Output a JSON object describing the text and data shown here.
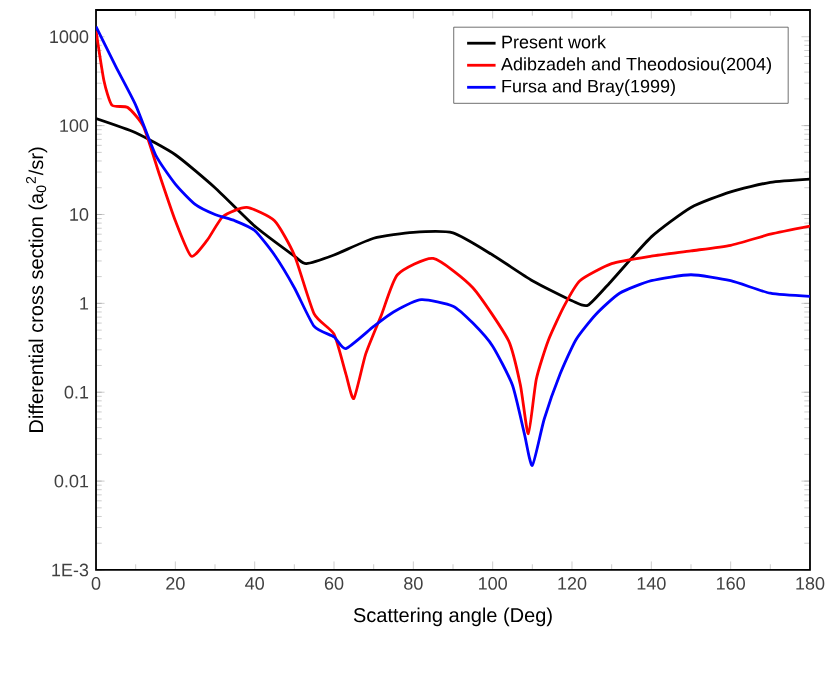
{
  "chart_data": {
    "type": "line",
    "xlabel": "Scattering angle (Deg)",
    "ylabel": "Differential cross section (a$_{0}$$^{2}$/sr)",
    "log": "y",
    "xlim": [
      0,
      180
    ],
    "ylim": [
      0.001,
      2000
    ],
    "xticks": [
      0,
      20,
      40,
      60,
      80,
      100,
      120,
      140,
      160,
      180
    ],
    "yticks": [
      {
        "value": 0.001,
        "label": "1E-3"
      },
      0.01,
      0.1,
      1,
      10,
      100,
      1000
    ],
    "legend": "top right",
    "grid": false,
    "marker": "none",
    "line_style": "solid",
    "series": [
      {
        "name": "Present work",
        "color": "#000000",
        "x": [
          0,
          10,
          20,
          30,
          40,
          50,
          53,
          60,
          70,
          80,
          90,
          100,
          110,
          120,
          124,
          130,
          140,
          150,
          160,
          170,
          180
        ],
        "values": [
          120,
          83,
          47,
          20,
          7.4,
          3.4,
          2.8,
          3.5,
          5.4,
          6.3,
          6.2,
          3.5,
          1.8,
          1.07,
          0.95,
          1.8,
          5.6,
          12,
          18,
          23,
          25
        ]
      },
      {
        "name": "Adibzadeh and Theodosiou(2004)",
        "color": "#ff0000",
        "x": [
          0,
          2,
          4,
          8,
          12,
          16,
          20,
          24,
          28,
          32,
          38,
          45,
          50,
          55,
          60,
          63,
          65,
          68,
          72,
          76,
          85,
          95,
          104,
          107,
          109,
          111,
          114,
          118,
          122,
          130,
          140,
          150,
          160,
          170,
          180
        ],
        "values": [
          1170,
          320,
          170,
          160,
          97,
          28,
          8.5,
          3.4,
          5.1,
          9.5,
          12,
          8.5,
          3.5,
          0.76,
          0.45,
          0.16,
          0.085,
          0.27,
          0.75,
          2.1,
          3.2,
          1.5,
          0.38,
          0.12,
          0.034,
          0.14,
          0.38,
          0.93,
          1.8,
          2.8,
          3.4,
          3.9,
          4.5,
          6,
          7.4
        ]
      },
      {
        "name": "Fursa and Bray(1999)",
        "color": "#0000ff",
        "x": [
          0,
          5,
          10,
          15,
          20,
          25,
          30,
          35,
          40,
          45,
          50,
          55,
          60,
          63,
          70,
          75,
          82,
          90,
          95,
          100,
          105,
          108,
          110,
          113,
          117,
          121,
          126,
          132,
          140,
          150,
          160,
          170,
          180
        ],
        "values": [
          1300,
          460,
          170,
          47,
          22,
          13,
          10,
          8.5,
          6.6,
          3.5,
          1.5,
          0.55,
          0.42,
          0.31,
          0.55,
          0.8,
          1.1,
          0.93,
          0.6,
          0.33,
          0.12,
          0.034,
          0.015,
          0.05,
          0.16,
          0.39,
          0.75,
          1.3,
          1.8,
          2.1,
          1.8,
          1.3,
          1.2
        ]
      }
    ]
  }
}
